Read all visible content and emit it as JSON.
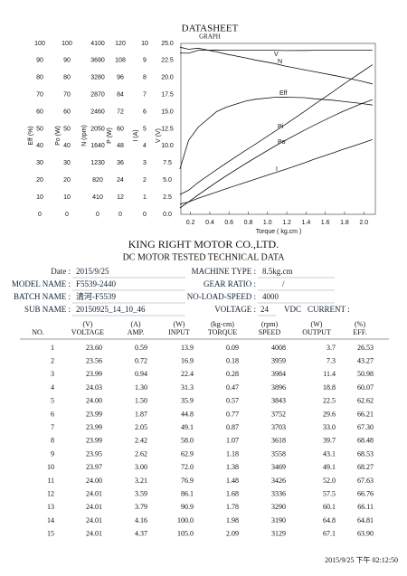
{
  "chart_data": {
    "type": "line",
    "title": "DATASHEET",
    "subtitle": "GRAPH",
    "xlabel": "Torque ( kg.cm )",
    "x": [
      0.09,
      0.18,
      0.28,
      0.47,
      0.57,
      0.77,
      0.87,
      1.07,
      1.18,
      1.38,
      1.48,
      1.68,
      1.78,
      1.98,
      2.09
    ],
    "xlim": [
      0.1,
      2.12
    ],
    "xticks": [
      0.2,
      0.4,
      0.6,
      0.8,
      {
        "value": 1,
        "label": "1.0"
      },
      1.2,
      1.4,
      1.6,
      1.8,
      {
        "value": 2,
        "label": "2.0"
      }
    ],
    "axes": [
      {
        "label": "Eff (%)",
        "ylim": [
          0,
          100
        ],
        "yticks": [
          0,
          10,
          20,
          30,
          40,
          50,
          60,
          70,
          80,
          90,
          100
        ]
      },
      {
        "label": "Po (W)",
        "ylim": [
          0,
          100
        ],
        "yticks": [
          0,
          10,
          20,
          30,
          40,
          50,
          60,
          70,
          80,
          90,
          100
        ]
      },
      {
        "label": "N (rpm)",
        "ylim": [
          0,
          4100
        ],
        "yticks": [
          0,
          410,
          820,
          1230,
          1640,
          2050,
          2460,
          2870,
          3280,
          3690,
          4100
        ]
      },
      {
        "label": "P (W)",
        "ylim": [
          0,
          120
        ],
        "yticks": [
          0,
          12,
          24,
          36,
          48,
          60,
          72,
          84,
          96,
          108,
          120
        ]
      },
      {
        "label": "I (A)",
        "ylim": [
          0,
          10
        ],
        "yticks": [
          0,
          1,
          2,
          3,
          4,
          5,
          6,
          7,
          8,
          9,
          10
        ]
      },
      {
        "label": "V (V)",
        "ylim": [
          0,
          25
        ],
        "yticks": [
          {
            "value": 0,
            "label": "0.0"
          },
          2.5,
          {
            "value": 5,
            "label": "5.0"
          },
          7.5,
          {
            "value": 10,
            "label": "10.0"
          },
          12.5,
          {
            "value": 15,
            "label": "15.0"
          },
          17.5,
          {
            "value": 20,
            "label": "20.0"
          },
          22.5,
          {
            "value": 25,
            "label": "25.0"
          }
        ]
      }
    ],
    "series": [
      {
        "name": "V",
        "axis": 5,
        "color": "#111",
        "values": [
          23.6,
          23.56,
          23.99,
          24.03,
          24.0,
          23.99,
          23.99,
          23.99,
          23.95,
          23.97,
          24.0,
          24.01,
          24.01,
          24.01,
          24.01
        ]
      },
      {
        "name": "N",
        "axis": 2,
        "color": "#111",
        "values": [
          4008,
          3959,
          3984,
          3896,
          3843,
          3752,
          3703,
          3618,
          3558,
          3469,
          3426,
          3336,
          3290,
          3190,
          3129
        ]
      },
      {
        "name": "Eff",
        "axis": 0,
        "color": "#111",
        "values": [
          26.53,
          43.27,
          50.98,
          60.07,
          62.62,
          66.21,
          67.3,
          68.48,
          68.53,
          68.27,
          67.63,
          66.76,
          66.11,
          64.81,
          63.9
        ]
      },
      {
        "name": "Pi",
        "axis": 3,
        "color": "#111",
        "values": [
          13.9,
          16.9,
          22.4,
          31.3,
          35.9,
          44.8,
          49.1,
          58.0,
          62.9,
          72.0,
          76.9,
          86.1,
          90.9,
          100.0,
          105.0
        ]
      },
      {
        "name": "Po",
        "axis": 1,
        "color": "#111",
        "values": [
          3.7,
          7.3,
          11.4,
          18.8,
          22.5,
          29.6,
          33.0,
          39.7,
          43.1,
          49.1,
          52.0,
          57.5,
          60.1,
          64.8,
          67.1
        ]
      },
      {
        "name": "I",
        "axis": 4,
        "color": "#111",
        "values": [
          0.59,
          0.72,
          0.94,
          1.3,
          1.5,
          1.87,
          2.05,
          2.42,
          2.62,
          3.0,
          3.21,
          3.59,
          3.79,
          4.16,
          4.37
        ]
      }
    ]
  },
  "document": {
    "company": "KING RIGHT MOTOR CO.,LTD.",
    "subtitle": "DC MOTOR TESTED TECHNICAL DATA",
    "info_left": [
      {
        "label": "Date :",
        "value": "2015/9/25"
      },
      {
        "label": "MODEL NAME :",
        "value": "F5539-2440"
      },
      {
        "label": "BATCH NAME :",
        "value": "清河-F5539"
      },
      {
        "label": "SUB NAME :",
        "value": "20150925_14_10_46"
      }
    ],
    "info_right": [
      {
        "label": "MACHINE TYPE :",
        "value": "8.5kg.cm"
      },
      {
        "label": "GEAR RATIO :",
        "value": "/"
      },
      {
        "label": "NO-LOAD-SPEED :",
        "value": "4000"
      },
      {
        "label": "VOLTAGE :",
        "value": "24",
        "unit": "VDC",
        "extra": "CURRENT :"
      }
    ],
    "table": {
      "units": [
        "(V)",
        "(A)",
        "(W)",
        "(kg-cm)",
        "(rpm)",
        "(W)",
        "(%)"
      ],
      "columns": [
        "NO.",
        "VOLTAGE",
        "AMP.",
        "INPUT",
        "TORQUE",
        "SPEED",
        "OUTPUT",
        "EFF."
      ],
      "rows": [
        [
          "1",
          "23.60",
          "0.59",
          "13.9",
          "0.09",
          "4008",
          "3.7",
          "26.53"
        ],
        [
          "2",
          "23.56",
          "0.72",
          "16.9",
          "0.18",
          "3959",
          "7.3",
          "43.27"
        ],
        [
          "3",
          "23.99",
          "0.94",
          "22.4",
          "0.28",
          "3984",
          "11.4",
          "50.98"
        ],
        [
          "4",
          "24.03",
          "1.30",
          "31.3",
          "0.47",
          "3896",
          "18.8",
          "60.07"
        ],
        [
          "5",
          "24.00",
          "1.50",
          "35.9",
          "0.57",
          "3843",
          "22.5",
          "62.62"
        ],
        [
          "6",
          "23.99",
          "1.87",
          "44.8",
          "0.77",
          "3752",
          "29.6",
          "66.21"
        ],
        [
          "7",
          "23.99",
          "2.05",
          "49.1",
          "0.87",
          "3703",
          "33.0",
          "67.30"
        ],
        [
          "8",
          "23.99",
          "2.42",
          "58.0",
          "1.07",
          "3618",
          "39.7",
          "68.48"
        ],
        [
          "9",
          "23.95",
          "2.62",
          "62.9",
          "1.18",
          "3558",
          "43.1",
          "68.53"
        ],
        [
          "10",
          "23.97",
          "3.00",
          "72.0",
          "1.38",
          "3469",
          "49.1",
          "68.27"
        ],
        [
          "11",
          "24.00",
          "3.21",
          "76.9",
          "1.48",
          "3426",
          "52.0",
          "67.63"
        ],
        [
          "12",
          "24.01",
          "3.59",
          "86.1",
          "1.68",
          "3336",
          "57.5",
          "66.76"
        ],
        [
          "13",
          "24.01",
          "3.79",
          "90.9",
          "1.78",
          "3290",
          "60.1",
          "66.11"
        ],
        [
          "14",
          "24.01",
          "4.16",
          "100.0",
          "1.98",
          "3190",
          "64.8",
          "64.81"
        ],
        [
          "15",
          "24.01",
          "4.37",
          "105.0",
          "2.09",
          "3129",
          "67.1",
          "63.90"
        ]
      ]
    },
    "footer": "2015/9/25 下午 02:12:50"
  }
}
